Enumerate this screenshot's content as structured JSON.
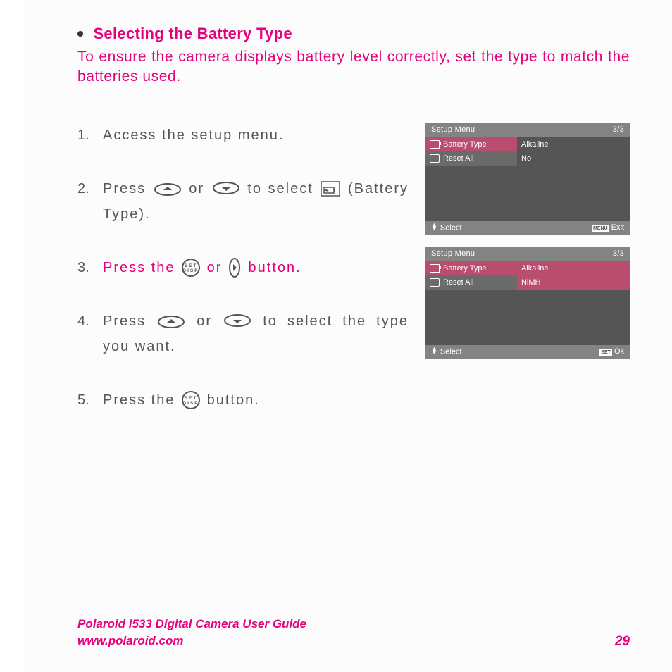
{
  "colors": {
    "accent": "#e6007e",
    "body": "#555555",
    "screenBg": "#555555",
    "screenBar": "#838383",
    "screenHilite": "#b84d6e"
  },
  "heading": "Selecting the Battery Type",
  "intro": "To ensure the camera displays battery level correctly, set the type to match the batteries used.",
  "steps": [
    {
      "pre": "Access the setup menu.",
      "accent": false
    },
    {
      "pre": "Press ",
      "icons": [
        "up",
        "or",
        "down",
        "to select",
        "battery"
      ],
      "post": " (Battery Type).",
      "accent": false
    },
    {
      "pre": "Press the ",
      "icons": [
        "set",
        "or",
        "right"
      ],
      "post": " button.",
      "accent": true
    },
    {
      "pre": "Press ",
      "icons": [
        "up",
        "or",
        "down"
      ],
      "post": " to select the type you want.",
      "accent": false
    },
    {
      "pre": "Press the ",
      "icons": [
        "set"
      ],
      "post": " button.",
      "accent": false
    }
  ],
  "screens": [
    {
      "title": "Setup Menu",
      "page": "3/3",
      "rows": [
        {
          "icon": "bat",
          "label": "Battery Type",
          "value": "Alkaline",
          "hl": true
        },
        {
          "icon": "reset",
          "label": "Reset All",
          "value": "No"
        }
      ],
      "footerL": "Select",
      "footerR": "Exit",
      "footerRBtn": "MENU"
    },
    {
      "title": "Setup Menu",
      "page": "3/3",
      "rows": [
        {
          "icon": "bat",
          "label": "Battery Type",
          "value": "Alkaline",
          "hl": true,
          "hlv": true
        },
        {
          "icon": "reset",
          "label": "Reset All",
          "value": "NiMH",
          "hlv": true
        }
      ],
      "footerL": "Select",
      "footerR": "Ok",
      "footerRBtn": "SET"
    }
  ],
  "footer": {
    "title": "Polaroid i533 Digital Camera User Guide",
    "url": "www.polaroid.com",
    "page": "29"
  }
}
